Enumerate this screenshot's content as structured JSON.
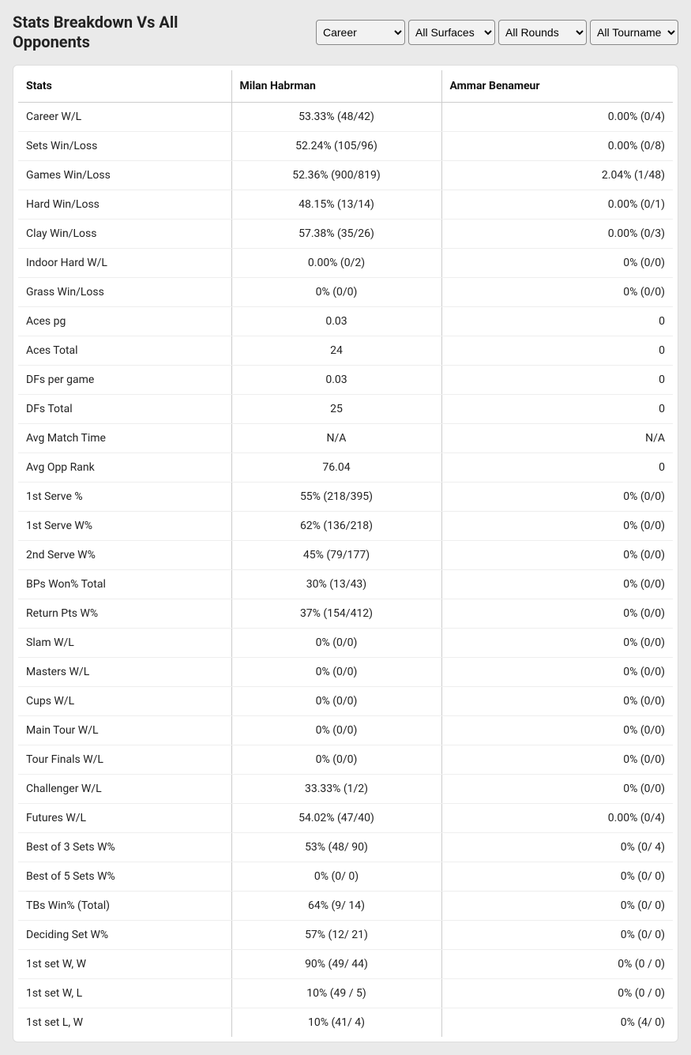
{
  "title": "Stats Breakdown Vs All Opponents",
  "filters": {
    "career": {
      "selected": "Career",
      "options": [
        "Career"
      ]
    },
    "surface": {
      "selected": "All Surfaces",
      "options": [
        "All Surfaces"
      ]
    },
    "rounds": {
      "selected": "All Rounds",
      "options": [
        "All Rounds"
      ]
    },
    "tournament": {
      "selected": "All Tournaments",
      "options": [
        "All Tournaments"
      ]
    }
  },
  "columns": {
    "stats": "Stats",
    "player1": "Milan Habrman",
    "player2": "Ammar Benameur"
  },
  "rows": [
    {
      "stat": "Career W/L",
      "p1": "53.33% (48/42)",
      "p2": "0.00% (0/4)"
    },
    {
      "stat": "Sets Win/Loss",
      "p1": "52.24% (105/96)",
      "p2": "0.00% (0/8)"
    },
    {
      "stat": "Games Win/Loss",
      "p1": "52.36% (900/819)",
      "p2": "2.04% (1/48)"
    },
    {
      "stat": "Hard Win/Loss",
      "p1": "48.15% (13/14)",
      "p2": "0.00% (0/1)"
    },
    {
      "stat": "Clay Win/Loss",
      "p1": "57.38% (35/26)",
      "p2": "0.00% (0/3)"
    },
    {
      "stat": "Indoor Hard W/L",
      "p1": "0.00% (0/2)",
      "p2": "0% (0/0)"
    },
    {
      "stat": "Grass Win/Loss",
      "p1": "0% (0/0)",
      "p2": "0% (0/0)"
    },
    {
      "stat": "Aces pg",
      "p1": "0.03",
      "p2": "0"
    },
    {
      "stat": "Aces Total",
      "p1": "24",
      "p2": "0"
    },
    {
      "stat": "DFs per game",
      "p1": "0.03",
      "p2": "0"
    },
    {
      "stat": "DFs Total",
      "p1": "25",
      "p2": "0"
    },
    {
      "stat": "Avg Match Time",
      "p1": "N/A",
      "p2": "N/A"
    },
    {
      "stat": "Avg Opp Rank",
      "p1": "76.04",
      "p2": "0"
    },
    {
      "stat": "1st Serve %",
      "p1": "55% (218/395)",
      "p2": "0% (0/0)"
    },
    {
      "stat": "1st Serve W%",
      "p1": "62% (136/218)",
      "p2": "0% (0/0)"
    },
    {
      "stat": "2nd Serve W%",
      "p1": "45% (79/177)",
      "p2": "0% (0/0)"
    },
    {
      "stat": "BPs Won% Total",
      "p1": "30% (13/43)",
      "p2": "0% (0/0)"
    },
    {
      "stat": "Return Pts W%",
      "p1": "37% (154/412)",
      "p2": "0% (0/0)"
    },
    {
      "stat": "Slam W/L",
      "p1": "0% (0/0)",
      "p2": "0% (0/0)"
    },
    {
      "stat": "Masters W/L",
      "p1": "0% (0/0)",
      "p2": "0% (0/0)"
    },
    {
      "stat": "Cups W/L",
      "p1": "0% (0/0)",
      "p2": "0% (0/0)"
    },
    {
      "stat": "Main Tour W/L",
      "p1": "0% (0/0)",
      "p2": "0% (0/0)"
    },
    {
      "stat": "Tour Finals W/L",
      "p1": "0% (0/0)",
      "p2": "0% (0/0)"
    },
    {
      "stat": "Challenger W/L",
      "p1": "33.33% (1/2)",
      "p2": "0% (0/0)"
    },
    {
      "stat": "Futures W/L",
      "p1": "54.02% (47/40)",
      "p2": "0.00% (0/4)"
    },
    {
      "stat": "Best of 3 Sets W%",
      "p1": "53% (48/ 90)",
      "p2": "0% (0/ 4)"
    },
    {
      "stat": "Best of 5 Sets W%",
      "p1": "0% (0/ 0)",
      "p2": "0% (0/ 0)"
    },
    {
      "stat": "TBs Win% (Total)",
      "p1": "64% (9/ 14)",
      "p2": "0% (0/ 0)"
    },
    {
      "stat": "Deciding Set W%",
      "p1": "57% (12/ 21)",
      "p2": "0% (0/ 0)"
    },
    {
      "stat": "1st set W, W",
      "p1": "90% (49/ 44)",
      "p2": "0% (0 / 0)"
    },
    {
      "stat": "1st set W, L",
      "p1": "10% (49 / 5)",
      "p2": "0% (0 / 0)"
    },
    {
      "stat": "1st set L, W",
      "p1": "10% (41/ 4)",
      "p2": "0% (4/ 0)"
    }
  ],
  "styling": {
    "background_color": "#eaeaea",
    "table_background": "#ffffff",
    "border_color": "#cccccc",
    "row_border_color": "#eeeeee",
    "header_font_weight": 700,
    "font_size_body": 14,
    "font_size_title": 20
  }
}
